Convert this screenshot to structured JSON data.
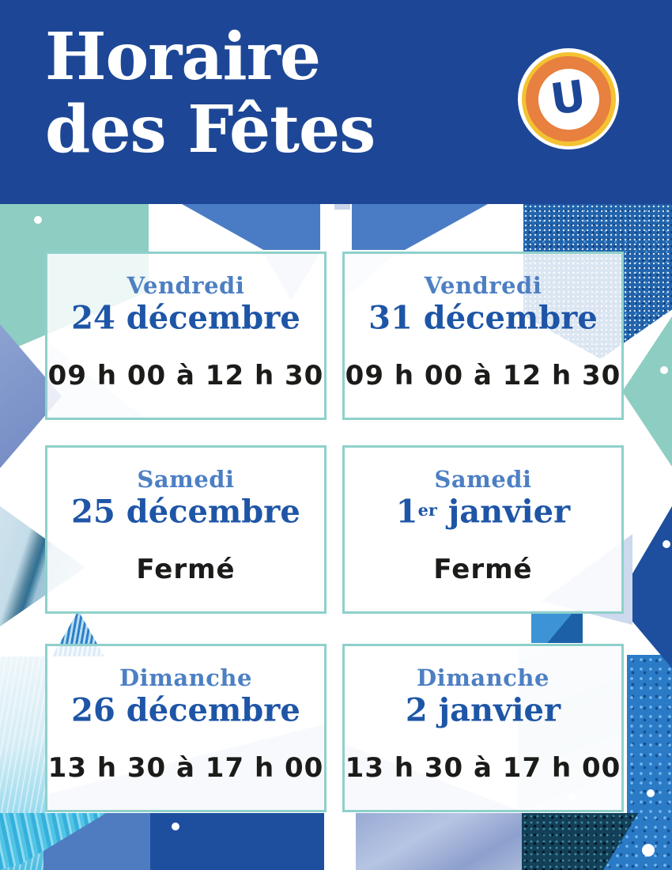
{
  "header": {
    "title_line1": "Horaire",
    "title_line2": "des Fêtes",
    "logo_letter": "U"
  },
  "cards": [
    {
      "day": "Vendredi",
      "date_pre": "24 décembre",
      "date_sup": "",
      "date_post": "",
      "hours": "09 h 00 à 12 h 30"
    },
    {
      "day": "Vendredi",
      "date_pre": "31 décembre",
      "date_sup": "",
      "date_post": "",
      "hours": "09 h 00 à 12 h 30"
    },
    {
      "day": "Samedi",
      "date_pre": "25 décembre",
      "date_sup": "",
      "date_post": "",
      "hours": "Fermé"
    },
    {
      "day": "Samedi",
      "date_pre": "1",
      "date_sup": "er",
      "date_post": " janvier",
      "hours": "Fermé"
    },
    {
      "day": "Dimanche",
      "date_pre": "26 décembre",
      "date_sup": "",
      "date_post": "",
      "hours": "13 h 30 à 17 h 00"
    },
    {
      "day": "Dimanche",
      "date_pre": "2 janvier",
      "date_sup": "",
      "date_post": "",
      "hours": "13 h 30 à 17 h 00"
    }
  ],
  "colors": {
    "header_bg": "#1d4796",
    "day_text": "#4d7fc3",
    "date_text": "#1e55a6",
    "hours_text": "#1b1b19",
    "card_border": "#8fd0cb",
    "accent_teal": "#8ecdc2",
    "accent_blue": "#4a7cc5",
    "deep_blue": "#1d4f9e",
    "logo_orange": "#e8803f",
    "logo_yellow": "#f4c232"
  }
}
